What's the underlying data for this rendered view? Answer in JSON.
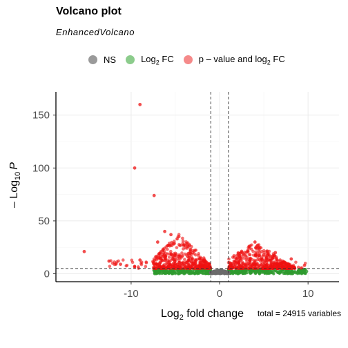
{
  "chart_data": {
    "type": "scatter",
    "title": "Volcano plot",
    "subtitle": "EnhancedVolcano",
    "xlabel": "Log2 fold change",
    "ylabel": "-Log10 P",
    "xlim": [
      -18.5,
      13.5
    ],
    "ylim": [
      -7.5,
      172
    ],
    "x_ticks": [
      -10,
      0,
      10
    ],
    "x_tick_labels": [
      "-10",
      "0",
      "10"
    ],
    "y_ticks": [
      0,
      50,
      100,
      150
    ],
    "y_tick_labels": [
      "0",
      "50",
      "100",
      "150"
    ],
    "grid": true,
    "fc_cutoff": 1,
    "p_cutoff_neglog10": 5,
    "legend_position": "top",
    "caption": "total = 24915 variables",
    "series": [
      {
        "name": "NS",
        "color": "#7f7f7f"
      },
      {
        "name": "Log2 FC",
        "color": "#2e9a2e"
      },
      {
        "name": "p - value and log2 FC",
        "color": "#ee1111"
      }
    ],
    "highlighted_points": [
      {
        "x": -9,
        "y": 160
      },
      {
        "x": -9.6,
        "y": 100
      },
      {
        "x": -7.4,
        "y": 74
      },
      {
        "x": -15.3,
        "y": 21
      },
      {
        "x": -6.2,
        "y": 40
      },
      {
        "x": -5.5,
        "y": 37
      },
      {
        "x": -4.8,
        "y": 33
      },
      {
        "x": -7.0,
        "y": 30
      },
      {
        "x": 4.0,
        "y": 30
      },
      {
        "x": 4.3,
        "y": 27
      },
      {
        "x": 3.2,
        "y": 22
      },
      {
        "x": 6.3,
        "y": 20
      },
      {
        "x": 8.1,
        "y": 14
      },
      {
        "x": 9.6,
        "y": 8
      },
      {
        "x": -12.5,
        "y": 12
      },
      {
        "x": -11.2,
        "y": 9
      },
      {
        "x": -9.0,
        "y": 13
      }
    ]
  },
  "legend": {
    "ns_label": "NS",
    "fc_label_main": "Log",
    "fc_label_sub": "2",
    "fc_label_tail": " FC",
    "both_label_main": "p – value and log",
    "both_label_sub": "2",
    "both_label_tail": " FC"
  },
  "axis_text": {
    "x_main": "Log",
    "x_sub": "2",
    "x_tail": " fold change",
    "y_prefix": "– Log",
    "y_sub": "10",
    "y_italic": "P"
  }
}
